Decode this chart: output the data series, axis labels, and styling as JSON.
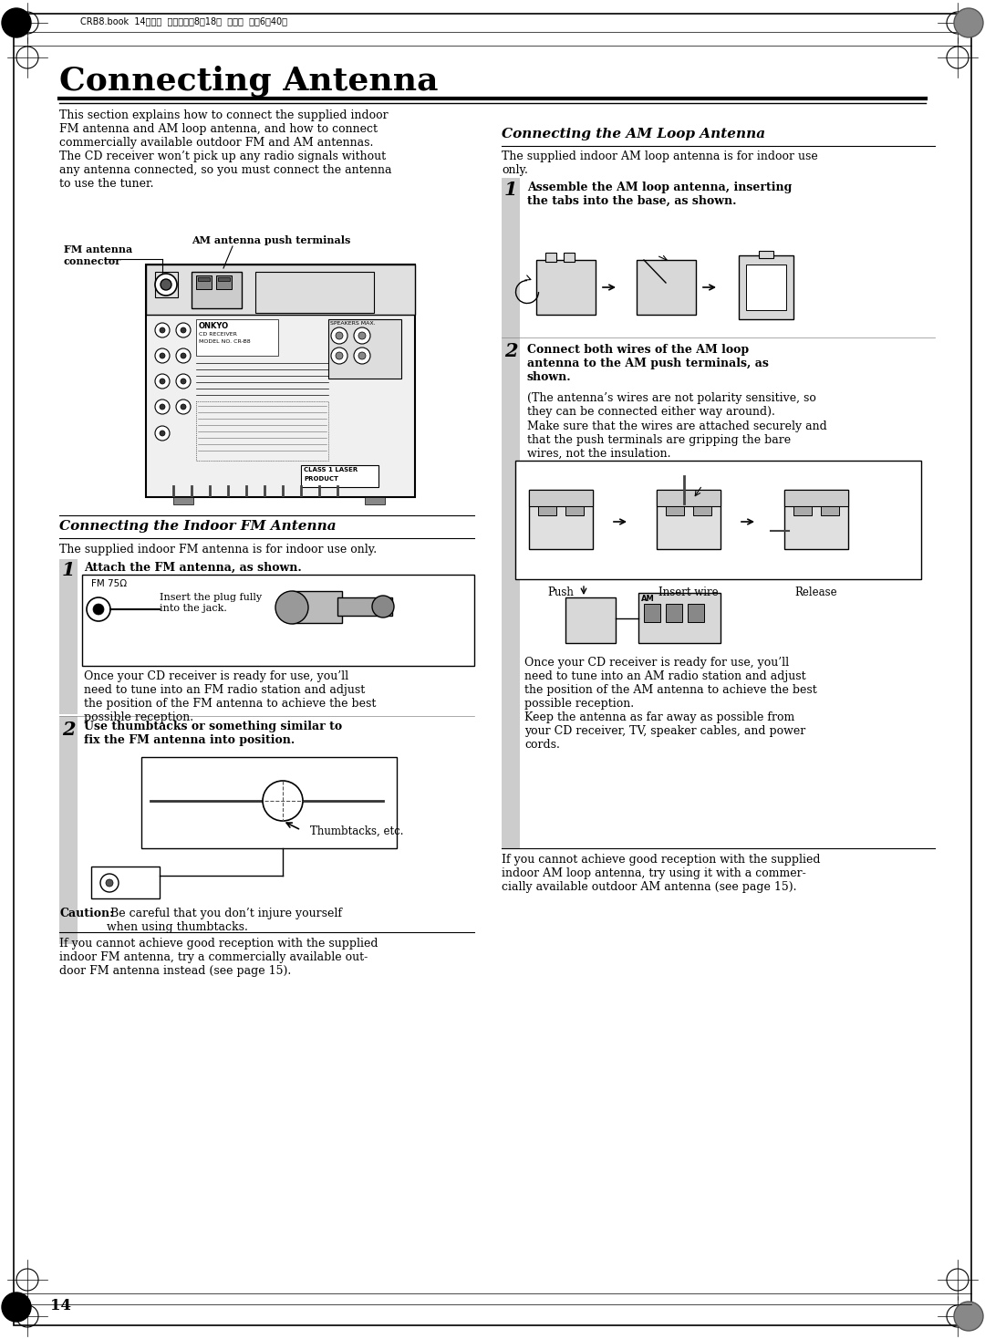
{
  "page_bg": "#ffffff",
  "header_text": "CRB8.book  14ページ  ２００５年8月18日  木曜日  午後6時40分",
  "title": "Connecting Antenna",
  "intro_text": "This section explains how to connect the supplied indoor\nFM antenna and AM loop antenna, and how to connect\ncommercially available outdoor FM and AM antennas.\nThe CD receiver won’t pick up any radio signals without\nany antenna connected, so you must connect the antenna\nto use the tuner.",
  "fm_label": "FM antenna\nconnector",
  "am_label": "AM antenna push terminals",
  "section1_title": "Connecting the Indoor FM Antenna",
  "section1_desc": "The supplied indoor FM antenna is for indoor use only.",
  "step1_fm_title": "Attach the FM antenna, as shown.",
  "step1_fm_fm75": "FM 75Ω",
  "step1_fm_caption": "Insert the plug fully\ninto the jack.",
  "step1_fm_body": "Once your CD receiver is ready for use, you’ll\nneed to tune into an FM radio station and adjust\nthe position of the FM antenna to achieve the best\npossible reception.",
  "step2_fm_title": "Use thumbtacks or something similar to\nfix the FM antenna into position.",
  "step2_fm_caption": "Thumbtacks, etc.",
  "step2_fm_caution_bold": "Caution:",
  "step2_fm_caution_rest": " Be careful that you don’t injure yourself\nwhen using thumbtacks.",
  "step2_fm_footer": "If you cannot achieve good reception with the supplied\nindoor FM antenna, try a commercially available out-\ndoor FM antenna instead (see page 15).",
  "section2_title": "Connecting the AM Loop Antenna",
  "section2_desc": "The supplied indoor AM loop antenna is for indoor use\nonly.",
  "step1_am_title": "Assemble the AM loop antenna, inserting\nthe tabs into the base, as shown.",
  "step2_am_title": "Connect both wires of the AM loop\nantenna to the AM push terminals, as\nshown.",
  "step2_am_body1": "(The antenna’s wires are not polarity sensitive, so\nthey can be connected either way around).",
  "step2_am_body2": "Make sure that the wires are attached securely and\nthat the push terminals are gripping the bare\nwires, not the insulation.",
  "push_label": "Push",
  "insert_label": "Insert wire",
  "release_label": "Release",
  "step2_am_body3": "Once your CD receiver is ready for use, you’ll\nneed to tune into an AM radio station and adjust\nthe position of the AM antenna to achieve the best\npossible reception.\nKeep the antenna as far away as possible from\nyour CD receiver, TV, speaker cables, and power\ncords.",
  "am_footer": "If you cannot achieve good reception with the supplied\nindoor AM loop antenna, try using it with a commer-\ncially available outdoor AM antenna (see page 15).",
  "page_number": "14"
}
